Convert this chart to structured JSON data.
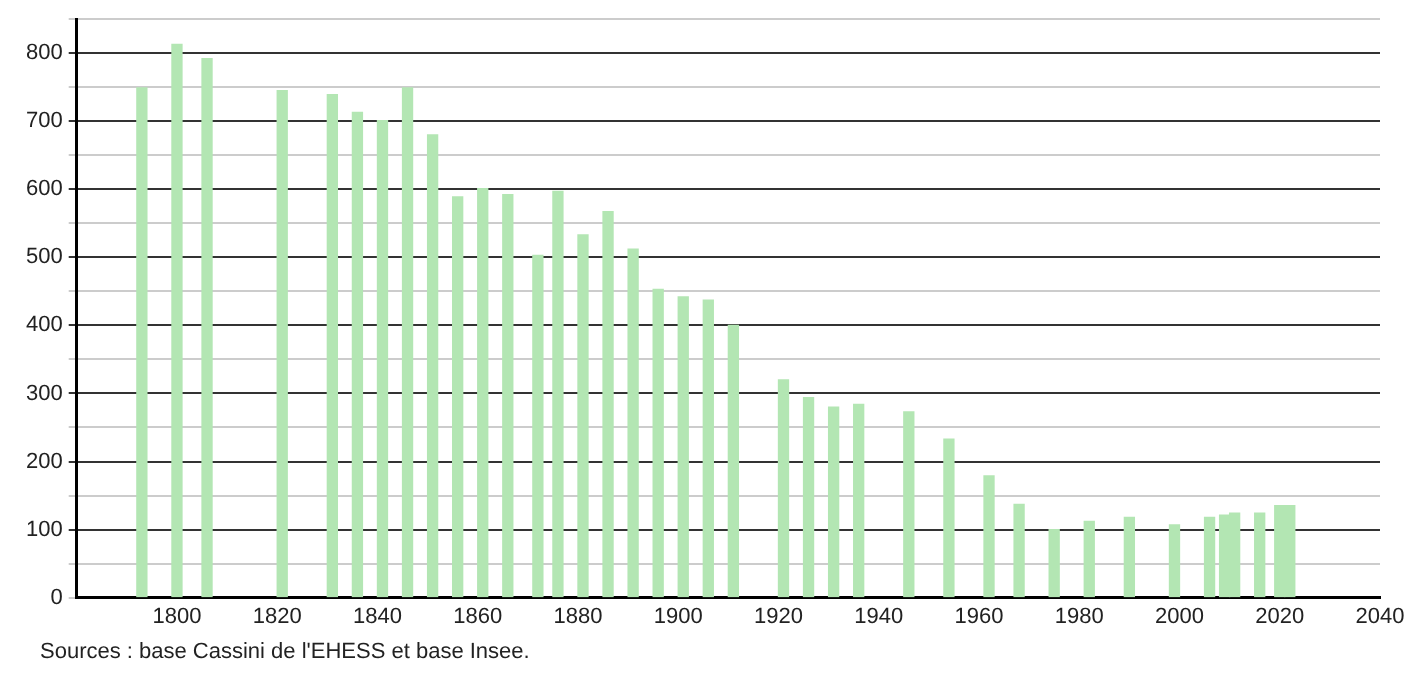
{
  "chart_data": {
    "type": "bar",
    "x": [
      1793,
      1800,
      1806,
      1821,
      1831,
      1836,
      1841,
      1846,
      1851,
      1856,
      1861,
      1866,
      1872,
      1876,
      1881,
      1886,
      1891,
      1896,
      1901,
      1906,
      1911,
      1921,
      1926,
      1931,
      1936,
      1946,
      1954,
      1962,
      1968,
      1975,
      1982,
      1990,
      1999,
      2006,
      2009,
      2011,
      2016,
      2020,
      2022
    ],
    "values": [
      749,
      813,
      792,
      745,
      739,
      713,
      701,
      749,
      680,
      589,
      601,
      592,
      503,
      597,
      533,
      567,
      512,
      453,
      442,
      437,
      400,
      320,
      294,
      280,
      284,
      273,
      233,
      179,
      137,
      100,
      112,
      118,
      107,
      118,
      121,
      124,
      124,
      135,
      135
    ],
    "color": "#b3e6b3",
    "xlim": [
      1780,
      2040
    ],
    "xticks": [
      1800,
      1820,
      1840,
      1860,
      1880,
      1900,
      1920,
      1940,
      1960,
      1980,
      2000,
      2020,
      2040
    ],
    "ylim": [
      0,
      850
    ],
    "yticks": [
      0,
      {
        "value": 50,
        "label": null
      },
      100,
      {
        "value": 150,
        "label": null
      },
      200,
      {
        "value": 250,
        "label": null
      },
      300,
      {
        "value": 350,
        "label": null
      },
      400,
      {
        "value": 450,
        "label": null
      },
      500,
      {
        "value": 550,
        "label": null
      },
      600,
      {
        "value": 650,
        "label": null
      },
      700,
      {
        "value": 750,
        "label": null
      },
      800,
      {
        "value": 850,
        "label": null
      }
    ],
    "grid": "y",
    "legend": false,
    "annotations": [
      "Sources : base Cassini de l'EHESS et base Insee."
    ]
  }
}
